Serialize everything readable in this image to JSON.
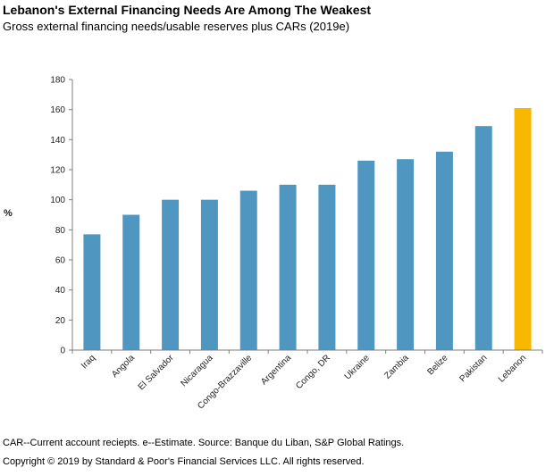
{
  "chart_data": {
    "type": "bar",
    "title": "Lebanon's External Financing Needs Are Among The Weakest",
    "subtitle": "Gross external financing needs/usable reserves plus CARs (2019e)",
    "ylabel": "%",
    "xlabel": "",
    "ylim": [
      0,
      180
    ],
    "yticks": [
      0,
      20,
      40,
      60,
      80,
      100,
      120,
      140,
      160,
      180
    ],
    "grid": false,
    "categories": [
      "Iraq",
      "Angola",
      "El Salvador",
      "Nicaragua",
      "Congo-Brazzaville",
      "Argentina",
      "Congo, DR",
      "Ukraine",
      "Zambia",
      "Belize",
      "Pakistan",
      "Lebanon"
    ],
    "values": [
      77,
      90,
      100,
      100,
      106,
      110,
      110,
      126,
      127,
      132,
      149,
      161
    ],
    "colors": [
      "#4f97c1",
      "#4f97c1",
      "#4f97c1",
      "#4f97c1",
      "#4f97c1",
      "#4f97c1",
      "#4f97c1",
      "#4f97c1",
      "#4f97c1",
      "#4f97c1",
      "#4f97c1",
      "#f9b800"
    ]
  },
  "footnote": "CAR--Current account reciepts. e--Estimate. Source: Banque du Liban, S&P Global Ratings.",
  "copyright": "Copyright © 2019 by Standard & Poor's Financial Services LLC. All rights reserved."
}
